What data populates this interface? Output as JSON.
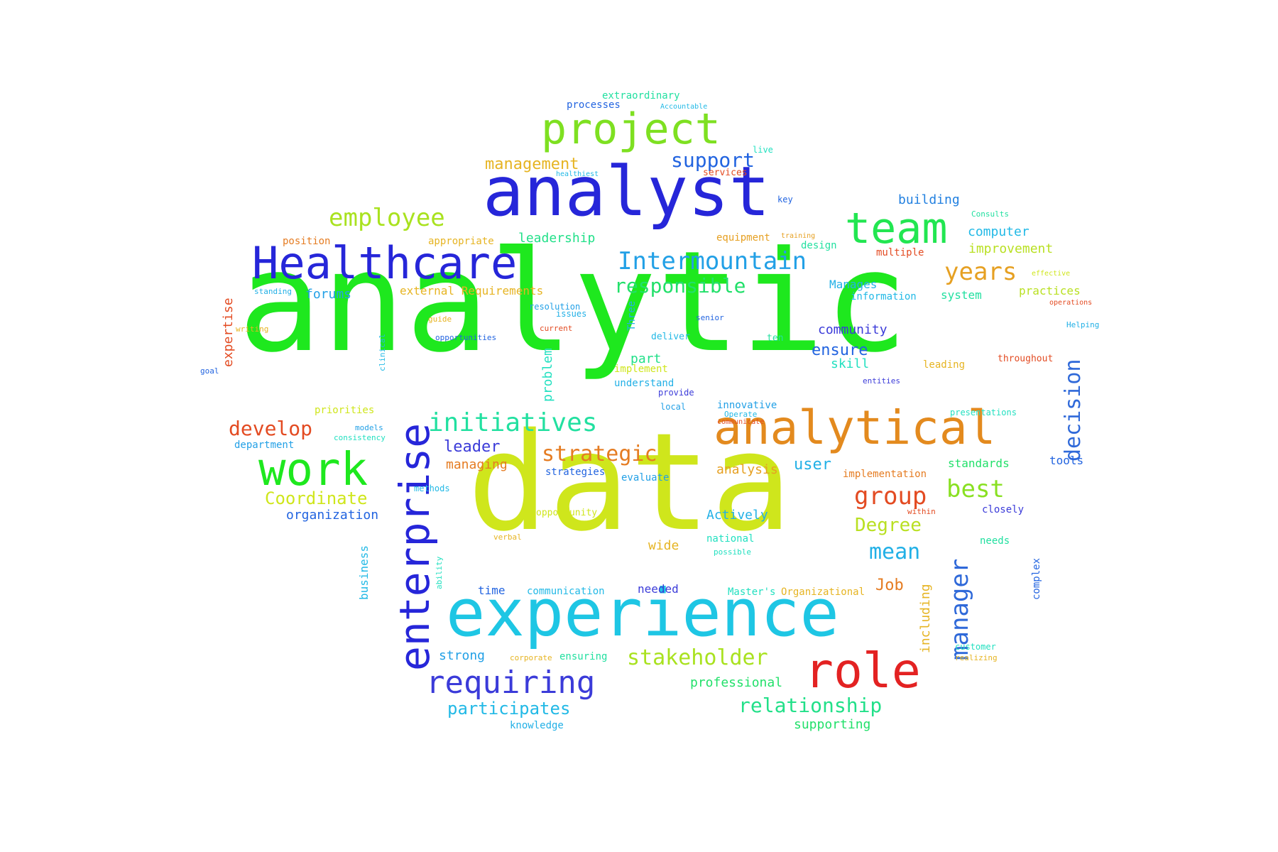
{
  "words": [
    {
      "text": "analytic",
      "color": "#1ee81e"
    },
    {
      "text": "data",
      "color": "#cfe61c"
    },
    {
      "text": "analyst",
      "color": "#2626d9"
    },
    {
      "text": "experience",
      "color": "#1ec6e4"
    },
    {
      "text": "Healthcare",
      "color": "#2626d9"
    },
    {
      "text": "analytical",
      "color": "#e38a1e"
    },
    {
      "text": "project",
      "color": "#7ee021"
    },
    {
      "text": "team",
      "color": "#22e651"
    },
    {
      "text": "role",
      "color": "#e32222"
    },
    {
      "text": "work",
      "color": "#1ee81e"
    },
    {
      "text": "enterprise",
      "color": "#2626d9"
    },
    {
      "text": "requiring",
      "color": "#3b3bd9"
    },
    {
      "text": "employee",
      "color": "#a9e21f"
    },
    {
      "text": "initiatives",
      "color": "#22e0a0"
    },
    {
      "text": "Intermountain",
      "color": "#22a0e6"
    },
    {
      "text": "stakeholder",
      "color": "#a9e21f"
    },
    {
      "text": "strategic",
      "color": "#e57c22"
    },
    {
      "text": "relationship",
      "color": "#22e089"
    },
    {
      "text": "responsible",
      "color": "#22e06a"
    },
    {
      "text": "years",
      "color": "#e6a022"
    },
    {
      "text": "best",
      "color": "#89e022"
    },
    {
      "text": "group",
      "color": "#e34b22"
    },
    {
      "text": "develop",
      "color": "#e34b22"
    },
    {
      "text": "support",
      "color": "#2264e0"
    },
    {
      "text": "management",
      "color": "#e6b422"
    },
    {
      "text": "participates",
      "color": "#22b9e6"
    },
    {
      "text": "manager",
      "color": "#2f69d9"
    },
    {
      "text": "decision",
      "color": "#2f69d9"
    },
    {
      "text": "mean",
      "color": "#22b0e6"
    },
    {
      "text": "Degree",
      "color": "#b9e022"
    },
    {
      "text": "Coordinate",
      "color": "#cfe61c"
    },
    {
      "text": "leader",
      "color": "#3b3bd9"
    },
    {
      "text": "building",
      "color": "#2280e0"
    },
    {
      "text": "computer",
      "color": "#22b9e6"
    },
    {
      "text": "improvement",
      "color": "#b9e022"
    },
    {
      "text": "community",
      "color": "#3b3bd9"
    },
    {
      "text": "ensure",
      "color": "#2264e0"
    },
    {
      "text": "skill",
      "color": "#22e0c0"
    },
    {
      "text": "forums",
      "color": "#22a0e6"
    },
    {
      "text": "Manages",
      "color": "#22b0e6"
    },
    {
      "text": "system",
      "color": "#22e0a0"
    },
    {
      "text": "practices",
      "color": "#b9e022"
    },
    {
      "text": "leadership",
      "color": "#22e089"
    },
    {
      "text": "design",
      "color": "#22e0a0"
    },
    {
      "text": "equipment",
      "color": "#e6a022"
    },
    {
      "text": "multiple",
      "color": "#e34b22"
    },
    {
      "text": "information",
      "color": "#22b9e6"
    },
    {
      "text": "managing",
      "color": "#e57c22"
    },
    {
      "text": "analysis",
      "color": "#e6a022"
    },
    {
      "text": "user",
      "color": "#22b0e6"
    },
    {
      "text": "standards",
      "color": "#22e06a"
    },
    {
      "text": "tools",
      "color": "#2264e0"
    },
    {
      "text": "organization",
      "color": "#2264e0"
    },
    {
      "text": "department",
      "color": "#22a0e6"
    },
    {
      "text": "priorities",
      "color": "#cfe61c"
    },
    {
      "text": "expertise",
      "color": "#e34b22"
    },
    {
      "text": "position",
      "color": "#e57c22"
    },
    {
      "text": "appropriate",
      "color": "#e6b422"
    },
    {
      "text": "external Requirements",
      "color": "#e6b422"
    },
    {
      "text": "opportunities",
      "color": "#2264e0"
    },
    {
      "text": "problem",
      "color": "#22e0c0"
    },
    {
      "text": "part",
      "color": "#22e089"
    },
    {
      "text": "implement",
      "color": "#cfe61c"
    },
    {
      "text": "understand",
      "color": "#22b0e6"
    },
    {
      "text": "innovative",
      "color": "#22a0e6"
    },
    {
      "text": "Actively",
      "color": "#22b0e6"
    },
    {
      "text": "national",
      "color": "#22e0c0"
    },
    {
      "text": "wide",
      "color": "#e6b422"
    },
    {
      "text": "needed",
      "color": "#3b3bd9"
    },
    {
      "text": "Master's",
      "color": "#22e0c0"
    },
    {
      "text": "Organizational",
      "color": "#e6b422"
    },
    {
      "text": "Job",
      "color": "#e57c22"
    },
    {
      "text": "including",
      "color": "#e6b422"
    },
    {
      "text": "complex",
      "color": "#2264e0"
    },
    {
      "text": "needs",
      "color": "#22e0a0"
    },
    {
      "text": "closely",
      "color": "#3b3bd9"
    },
    {
      "text": "strategies",
      "color": "#2264e0"
    },
    {
      "text": "evaluate",
      "color": "#22a0e6"
    },
    {
      "text": "opportunity",
      "color": "#cfe61c"
    },
    {
      "text": "communication",
      "color": "#22b9e6"
    },
    {
      "text": "time",
      "color": "#2264e0"
    },
    {
      "text": "business",
      "color": "#22b9e6"
    },
    {
      "text": "strong",
      "color": "#22a0e6"
    },
    {
      "text": "ensuring",
      "color": "#22e0a0"
    },
    {
      "text": "professional",
      "color": "#22e06a"
    },
    {
      "text": "supporting",
      "color": "#22e06a"
    },
    {
      "text": "knowledge",
      "color": "#22b0e6"
    },
    {
      "text": "implementation",
      "color": "#e57c22"
    },
    {
      "text": "customer",
      "color": "#22e0c0"
    },
    {
      "text": "throughout",
      "color": "#e34b22"
    },
    {
      "text": "leading",
      "color": "#e6b422"
    },
    {
      "text": "presentations",
      "color": "#22e0c0"
    },
    {
      "text": "Helping",
      "color": "#22b0e6"
    },
    {
      "text": "operations",
      "color": "#e34b22"
    },
    {
      "text": "effective",
      "color": "#cfe61c"
    },
    {
      "text": "Consults",
      "color": "#22e0a0"
    },
    {
      "text": "training",
      "color": "#e6a022"
    },
    {
      "text": "key",
      "color": "#2264e0"
    },
    {
      "text": "services",
      "color": "#e34b22"
    },
    {
      "text": "live",
      "color": "#22e0c0"
    },
    {
      "text": "processes",
      "color": "#2264e0"
    },
    {
      "text": "extraordinary",
      "color": "#22e0a0"
    },
    {
      "text": "Accountable",
      "color": "#22b9e6"
    },
    {
      "text": "healthiest",
      "color": "#22b9e6"
    },
    {
      "text": "resolution",
      "color": "#22a0e6"
    },
    {
      "text": "issues",
      "color": "#22b0e6"
    },
    {
      "text": "Three",
      "color": "#22b0e6"
    },
    {
      "text": "deliver",
      "color": "#22b9e6"
    },
    {
      "text": "senior",
      "color": "#2264e0"
    },
    {
      "text": "ten",
      "color": "#22e0a0"
    },
    {
      "text": "standing",
      "color": "#22b0e6"
    },
    {
      "text": "writing",
      "color": "#e6b422"
    },
    {
      "text": "goal",
      "color": "#2264e0"
    },
    {
      "text": "guide",
      "color": "#e6b422"
    },
    {
      "text": "current",
      "color": "#e34b22"
    },
    {
      "text": "clinical",
      "color": "#22b9e6"
    },
    {
      "text": "models",
      "color": "#22a0e6"
    },
    {
      "text": "consistency",
      "color": "#22e0c0"
    },
    {
      "text": "methods",
      "color": "#22b9e6"
    },
    {
      "text": "provide",
      "color": "#3b3bd9"
    },
    {
      "text": "local",
      "color": "#22a0e6"
    },
    {
      "text": "within",
      "color": "#e34b22"
    },
    {
      "text": "possible",
      "color": "#22e0c0"
    },
    {
      "text": "Operate",
      "color": "#22b9e6"
    },
    {
      "text": "communicate",
      "color": "#e34b22"
    },
    {
      "text": "entities",
      "color": "#3b3bd9"
    },
    {
      "text": "realizing",
      "color": "#e6b422"
    },
    {
      "text": "corporate",
      "color": "#e6b422"
    },
    {
      "text": "verbal",
      "color": "#e6b422"
    },
    {
      "text": "ability",
      "color": "#22e0c0"
    }
  ]
}
